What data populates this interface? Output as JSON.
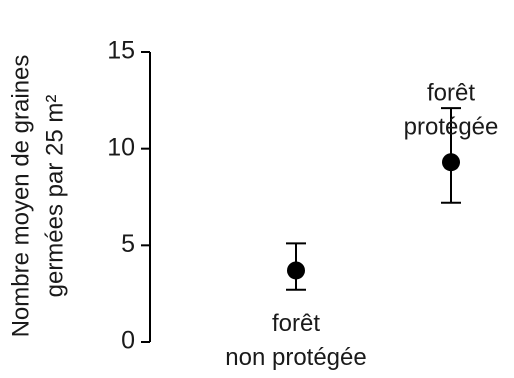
{
  "chart_data": {
    "type": "scatter",
    "title": "",
    "ylabel_lines": [
      "Nombre moyen de graines",
      "germées par 25 m²"
    ],
    "xlabel": "",
    "ylim": [
      0,
      15
    ],
    "yticks": [
      0,
      5,
      10,
      15
    ],
    "grid": false,
    "points": [
      {
        "label_lines": [
          "forêt",
          "non protégée"
        ],
        "mean": 3.7,
        "err_low": 2.7,
        "err_high": 5.1
      },
      {
        "label_lines": [
          "forêt",
          "protégée"
        ],
        "mean": 9.3,
        "err_low": 7.2,
        "err_high": 12.1
      }
    ],
    "colors": {
      "marker": "#000000",
      "axis": "#000000",
      "text": "#1a1a1a"
    }
  }
}
